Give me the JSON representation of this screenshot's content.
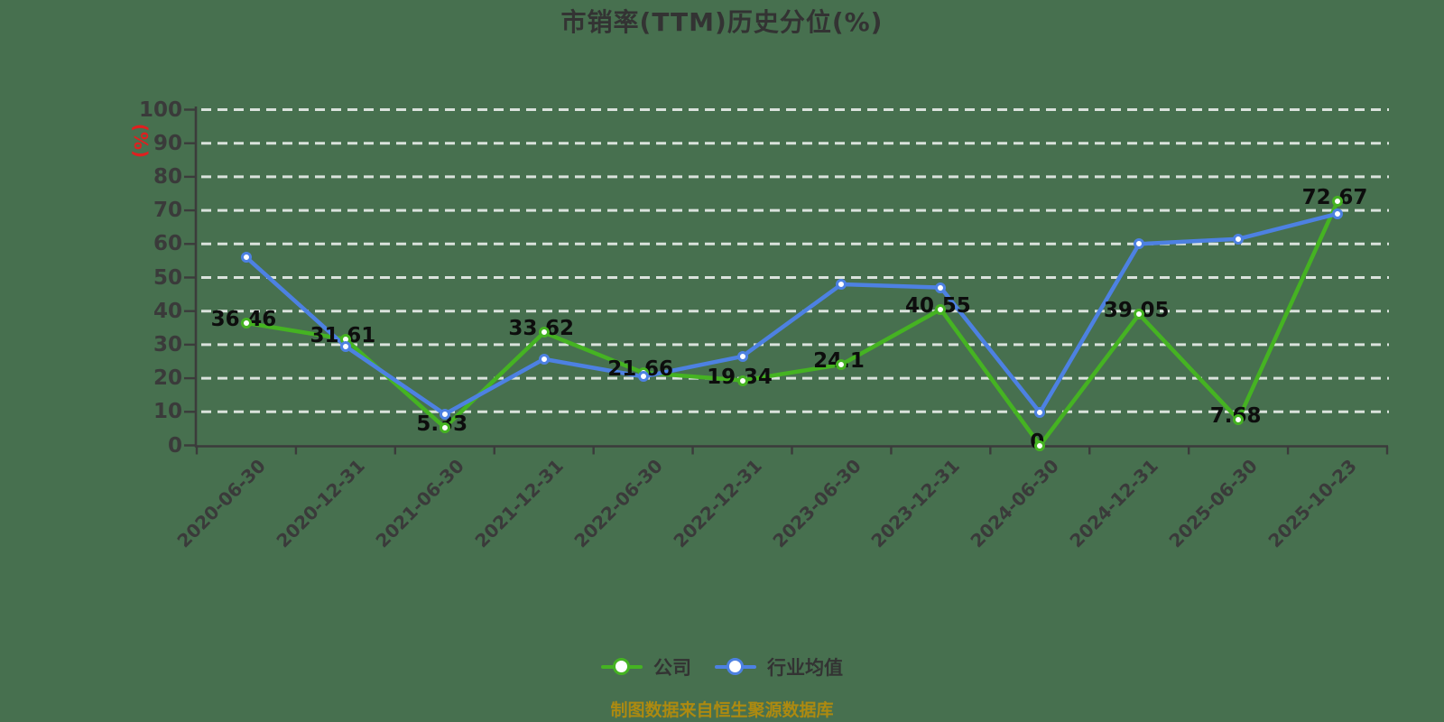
{
  "title": "市销率(TTM)历史分位(%)",
  "y_axis_label": "(%)",
  "footer_note": "制图数据来自恒生聚源数据库",
  "colors": {
    "background": "#47704f",
    "title": "#333333",
    "axis": "#3b3b3b",
    "tick_label": "#3a3a3a",
    "grid": "rgba(255,255,255,0.8)",
    "point_label": "#0d0d0d",
    "y_unit_label": "#e01f1f",
    "footer": "#ad8a10",
    "company_series": "#45b322",
    "industry_series": "#4d81e2"
  },
  "chart_data": {
    "type": "line",
    "title": "市销率(TTM)历史分位(%)",
    "ylabel": "(%)",
    "xlabel": "",
    "categories": [
      "2020-06-30",
      "2020-12-31",
      "2021-06-30",
      "2021-12-31",
      "2022-06-30",
      "2022-12-31",
      "2023-06-30",
      "2023-12-31",
      "2024-06-30",
      "2024-12-31",
      "2025-06-30",
      "2025-10-23"
    ],
    "series": [
      {
        "name": "公司",
        "color": "#45b322",
        "values": [
          36.46,
          31.61,
          5.33,
          33.62,
          21.66,
          19.34,
          24.1,
          40.55,
          0,
          39.05,
          7.68,
          72.67
        ],
        "point_labels": [
          "36.46",
          "31.61",
          "5.33",
          "33.62",
          "21.66",
          "19.34",
          "24.1",
          "40.55",
          "0",
          "39.05",
          "7.68",
          "72.67"
        ]
      },
      {
        "name": "行业均值",
        "color": "#4d81e2",
        "values": [
          56,
          29.5,
          9.3,
          25.7,
          20.5,
          26.5,
          48,
          47,
          9.8,
          60,
          61.5,
          69
        ],
        "point_labels": null
      }
    ],
    "ylim": [
      0,
      100
    ],
    "yticks": [
      0,
      10,
      20,
      30,
      40,
      50,
      60,
      70,
      80,
      90,
      100
    ],
    "grid": "horizontal-dashed-white",
    "legend_position": "bottom",
    "marker": "circle-white-fill"
  }
}
